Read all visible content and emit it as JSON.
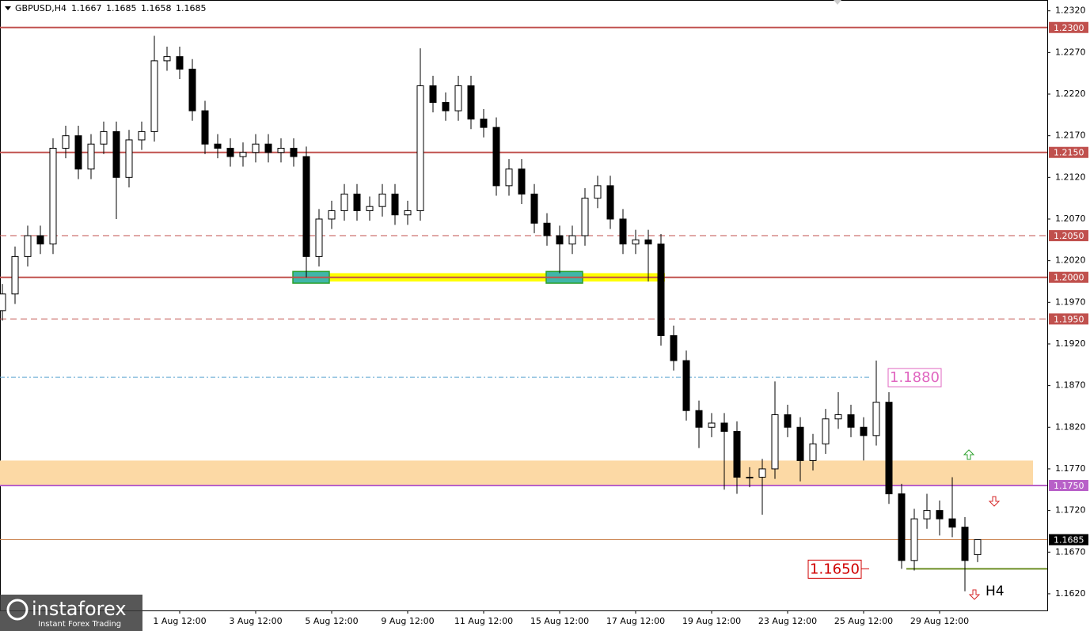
{
  "chart_data": {
    "type": "candlestick",
    "title": "GBPUSD,H4",
    "categories": [
      null,
      null,
      null,
      null,
      null,
      null,
      null,
      null,
      null,
      null,
      null,
      null,
      null,
      null,
      "1 Aug 12:00",
      null,
      null,
      null,
      null,
      null,
      "3 Aug 12:00",
      null,
      null,
      null,
      null,
      null,
      "5 Aug 12:00",
      null,
      null,
      null,
      null,
      null,
      "9 Aug 12:00",
      null,
      null,
      null,
      null,
      null,
      "11 Aug 12:00",
      null,
      null,
      null,
      null,
      null,
      "15 Aug 12:00",
      null,
      null,
      null,
      null,
      null,
      "17 Aug 12:00",
      null,
      null,
      null,
      null,
      null,
      "19 Aug 12:00",
      null,
      null,
      null,
      null,
      null,
      "23 Aug 12:00",
      null,
      null,
      null,
      null,
      null,
      "25 Aug 12:00",
      null,
      null,
      null,
      null,
      null,
      "29 Aug 12:00",
      null,
      null,
      null
    ],
    "open": [
      1.196,
      1.198,
      1.2025,
      1.205,
      1.204,
      1.2155,
      1.217,
      1.213,
      1.216,
      1.2175,
      1.212,
      1.2165,
      1.2175,
      1.226,
      1.2265,
      1.225,
      1.22,
      1.216,
      1.2155,
      1.2145,
      1.215,
      1.216,
      1.215,
      1.2155,
      1.2145,
      1.2025,
      1.207,
      1.208,
      1.21,
      1.208,
      1.2085,
      1.21,
      1.2075,
      1.208,
      1.223,
      1.221,
      1.22,
      1.223,
      1.219,
      1.218,
      1.211,
      1.213,
      1.21,
      1.2065,
      1.205,
      1.204,
      1.205,
      1.2095,
      1.211,
      1.207,
      1.204,
      1.2045,
      1.204,
      1.193,
      1.19,
      1.184,
      1.182,
      1.1825,
      1.1815,
      1.176,
      1.176,
      1.177,
      1.1835,
      1.182,
      1.178,
      1.18,
      1.183,
      1.1835,
      1.182,
      1.181,
      1.185,
      1.174,
      1.166,
      1.171,
      1.172,
      1.171,
      1.17,
      1.1667
    ],
    "high": [
      1.1992,
      1.2037,
      1.2062,
      1.2062,
      1.2167,
      1.2182,
      1.2182,
      1.2172,
      1.2187,
      1.2187,
      1.2177,
      1.2187,
      1.229,
      1.2277,
      1.2277,
      1.2262,
      1.2212,
      1.2172,
      1.2167,
      1.2162,
      1.2172,
      1.2172,
      1.2167,
      1.2167,
      1.2157,
      1.2082,
      1.2092,
      1.2112,
      1.2112,
      1.2097,
      1.2112,
      1.2112,
      1.2092,
      1.2275,
      1.2242,
      1.2222,
      1.2242,
      1.2242,
      1.2202,
      1.2192,
      1.2142,
      1.2142,
      1.2112,
      1.2077,
      1.2062,
      1.2062,
      1.2107,
      1.2122,
      1.2122,
      1.2082,
      1.2057,
      1.2057,
      1.2052,
      1.1942,
      1.1912,
      1.1852,
      1.1837,
      1.1837,
      1.1827,
      1.1772,
      1.1782,
      1.1875,
      1.1847,
      1.1832,
      1.1812,
      1.1842,
      1.1862,
      1.1847,
      1.1832,
      1.19,
      1.1862,
      1.1752,
      1.1722,
      1.174,
      1.1732,
      1.176,
      1.1712,
      1.1685
    ],
    "low": [
      1.1948,
      1.1968,
      1.2013,
      1.2028,
      1.2028,
      1.2143,
      1.2118,
      1.2118,
      1.2148,
      1.207,
      1.2108,
      1.2153,
      1.2163,
      1.2248,
      1.2238,
      1.2188,
      1.2148,
      1.2143,
      1.2133,
      1.2133,
      1.2138,
      1.2138,
      1.2138,
      1.2133,
      1.2,
      1.2013,
      1.2058,
      1.2068,
      1.2068,
      1.2068,
      1.2073,
      1.2063,
      1.2063,
      1.2068,
      1.2198,
      1.2188,
      1.2188,
      1.2178,
      1.2168,
      1.2098,
      1.2098,
      1.2088,
      1.2053,
      1.2038,
      1.2005,
      1.2028,
      1.2038,
      1.2083,
      1.2058,
      1.2028,
      1.2028,
      1.1995,
      1.1918,
      1.1888,
      1.1828,
      1.1795,
      1.1808,
      1.1745,
      1.174,
      1.1748,
      1.1715,
      1.1758,
      1.1808,
      1.1755,
      1.1768,
      1.1788,
      1.1818,
      1.1808,
      1.178,
      1.1798,
      1.1728,
      1.165,
      1.1648,
      1.1698,
      1.169,
      1.1688,
      1.1623,
      1.1658
    ],
    "close": [
      1.198,
      1.2025,
      1.205,
      1.204,
      1.2155,
      1.217,
      1.213,
      1.216,
      1.2175,
      1.212,
      1.2165,
      1.2175,
      1.226,
      1.2265,
      1.225,
      1.22,
      1.216,
      1.2155,
      1.2145,
      1.215,
      1.216,
      1.215,
      1.2155,
      1.2145,
      1.2025,
      1.207,
      1.208,
      1.21,
      1.208,
      1.2085,
      1.21,
      1.2075,
      1.208,
      1.223,
      1.221,
      1.22,
      1.223,
      1.219,
      1.218,
      1.211,
      1.213,
      1.21,
      1.2065,
      1.205,
      1.204,
      1.205,
      1.2095,
      1.211,
      1.207,
      1.204,
      1.2045,
      1.204,
      1.193,
      1.19,
      1.184,
      1.182,
      1.1825,
      1.1815,
      1.176,
      1.176,
      1.177,
      1.1835,
      1.182,
      1.178,
      1.18,
      1.183,
      1.1835,
      1.182,
      1.181,
      1.185,
      1.174,
      1.166,
      1.171,
      1.172,
      1.171,
      1.17,
      1.166,
      1.1685
    ],
    "up_color": "#ffffff",
    "down_color": "#000000",
    "ylim": [
      1.16,
      1.2333
    ],
    "yticks": [
      {
        "value": 1.232,
        "label": "1.2320"
      },
      {
        "value": 1.227,
        "label": "1.2270"
      },
      {
        "value": 1.222,
        "label": "1.2220"
      },
      {
        "value": 1.217,
        "label": "1.2170"
      },
      {
        "value": 1.212,
        "label": "1.2120"
      },
      {
        "value": 1.207,
        "label": "1.2070"
      },
      {
        "value": 1.202,
        "label": "1.2020"
      },
      {
        "value": 1.197,
        "label": "1.1970"
      },
      {
        "value": 1.192,
        "label": "1.1920"
      },
      {
        "value": 1.187,
        "label": "1.1870"
      },
      {
        "value": 1.182,
        "label": "1.1820"
      },
      {
        "value": 1.177,
        "label": "1.1770"
      },
      {
        "value": 1.172,
        "label": "1.1720"
      },
      {
        "value": 1.167,
        "label": "1.1670"
      },
      {
        "value": 1.162,
        "label": "1.1620"
      }
    ],
    "grid": false,
    "levels": [
      {
        "value": 1.23,
        "label": "1.2300",
        "color": "#c0504d",
        "style": "solid",
        "tag": "axis"
      },
      {
        "value": 1.215,
        "label": "1.2150",
        "color": "#c0504d",
        "style": "solid",
        "tag": "axis"
      },
      {
        "value": 1.205,
        "label": "1.2050",
        "color": "#c0504d",
        "style": "dashed",
        "tag": "axis"
      },
      {
        "value": 1.2,
        "label": "1.2000",
        "color": "#c0504d",
        "style": "solid",
        "tag": "axis"
      },
      {
        "value": 1.195,
        "label": "1.1950",
        "color": "#c0504d",
        "style": "dashed",
        "tag": "axis"
      },
      {
        "value": 1.188,
        "label": "1.1880",
        "color": "#5ba3d0",
        "style": "dashdot",
        "tag": "box",
        "label_color": "#e066c0"
      },
      {
        "value": 1.175,
        "label": "1.1750",
        "color": "#b860c8",
        "style": "solid",
        "tag": "axis"
      },
      {
        "value": 1.165,
        "label": "1.1650",
        "color": "#6b8e23",
        "style": "solid",
        "tag": "box",
        "label_color": "#d00000"
      }
    ],
    "last_price_color": "#c87f4a",
    "zones": [
      {
        "range": [
          1.175,
          1.178
        ],
        "color": "#fcd9a5"
      },
      {
        "range": [
          1.1995,
          1.2005
        ],
        "color": "#ffff00"
      },
      {
        "range": [
          1.1993,
          1.2007
        ],
        "color": "#3fb6a8"
      },
      {
        "range": [
          1.1993,
          1.2007
        ],
        "color": "#3fb6a8"
      }
    ],
    "timeframe_label": "H4"
  },
  "logo": {
    "name": "instaforex",
    "tagline": "Instant Forex Trading"
  }
}
